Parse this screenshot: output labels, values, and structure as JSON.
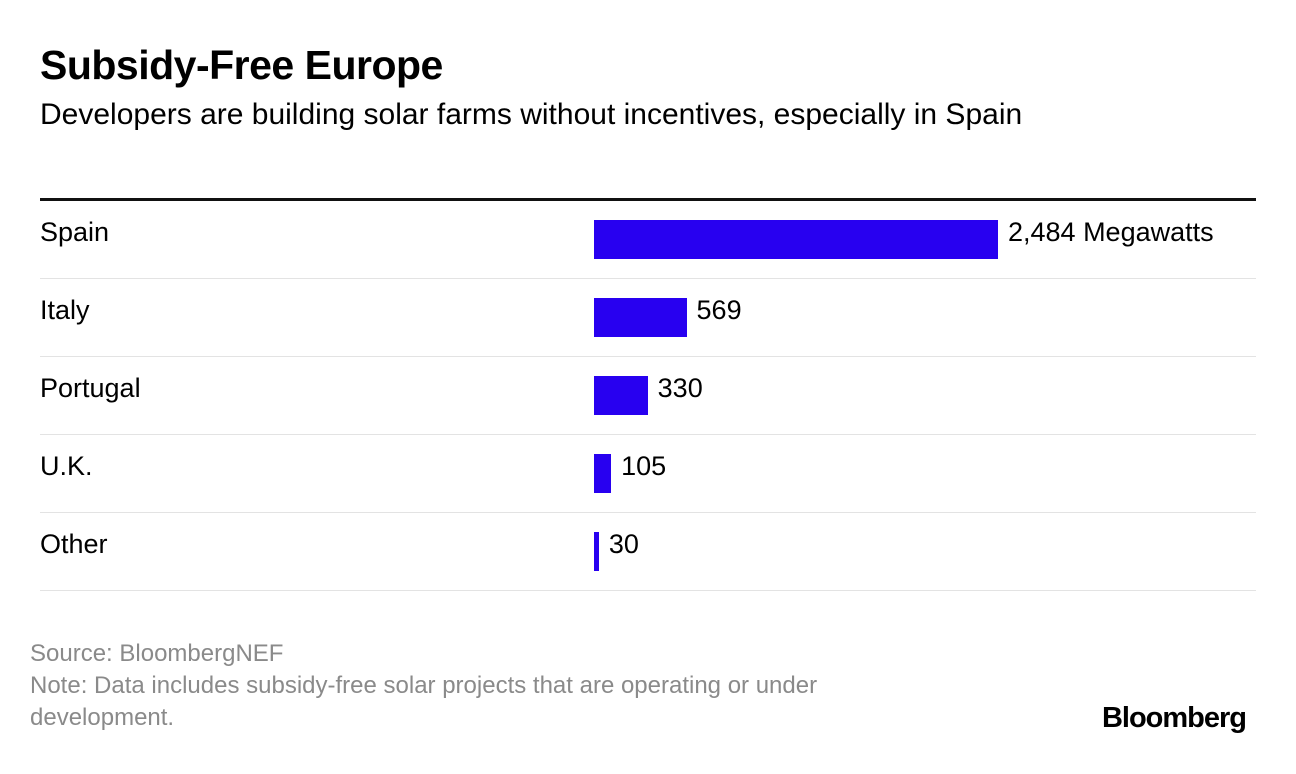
{
  "chart_data": {
    "type": "bar",
    "orientation": "horizontal",
    "title": "Subsidy-Free Europe",
    "subtitle": "Developers are building solar farms without incentives, especially in Spain",
    "categories": [
      "Spain",
      "Italy",
      "Portugal",
      "U.K.",
      "Other"
    ],
    "values": [
      2484,
      569,
      330,
      105,
      30
    ],
    "value_labels": [
      "2,484 Megawatts",
      "569",
      "330",
      "105",
      "30"
    ],
    "unit": "Megawatts",
    "xlim": [
      0,
      2484
    ],
    "bar_color": "#2800f0",
    "grid": false,
    "legend": "none"
  },
  "footer": {
    "source": "Source: BloombergNEF",
    "note": "Note: Data includes subsidy-free solar projects that are operating or under development.",
    "logo": "Bloomberg"
  }
}
